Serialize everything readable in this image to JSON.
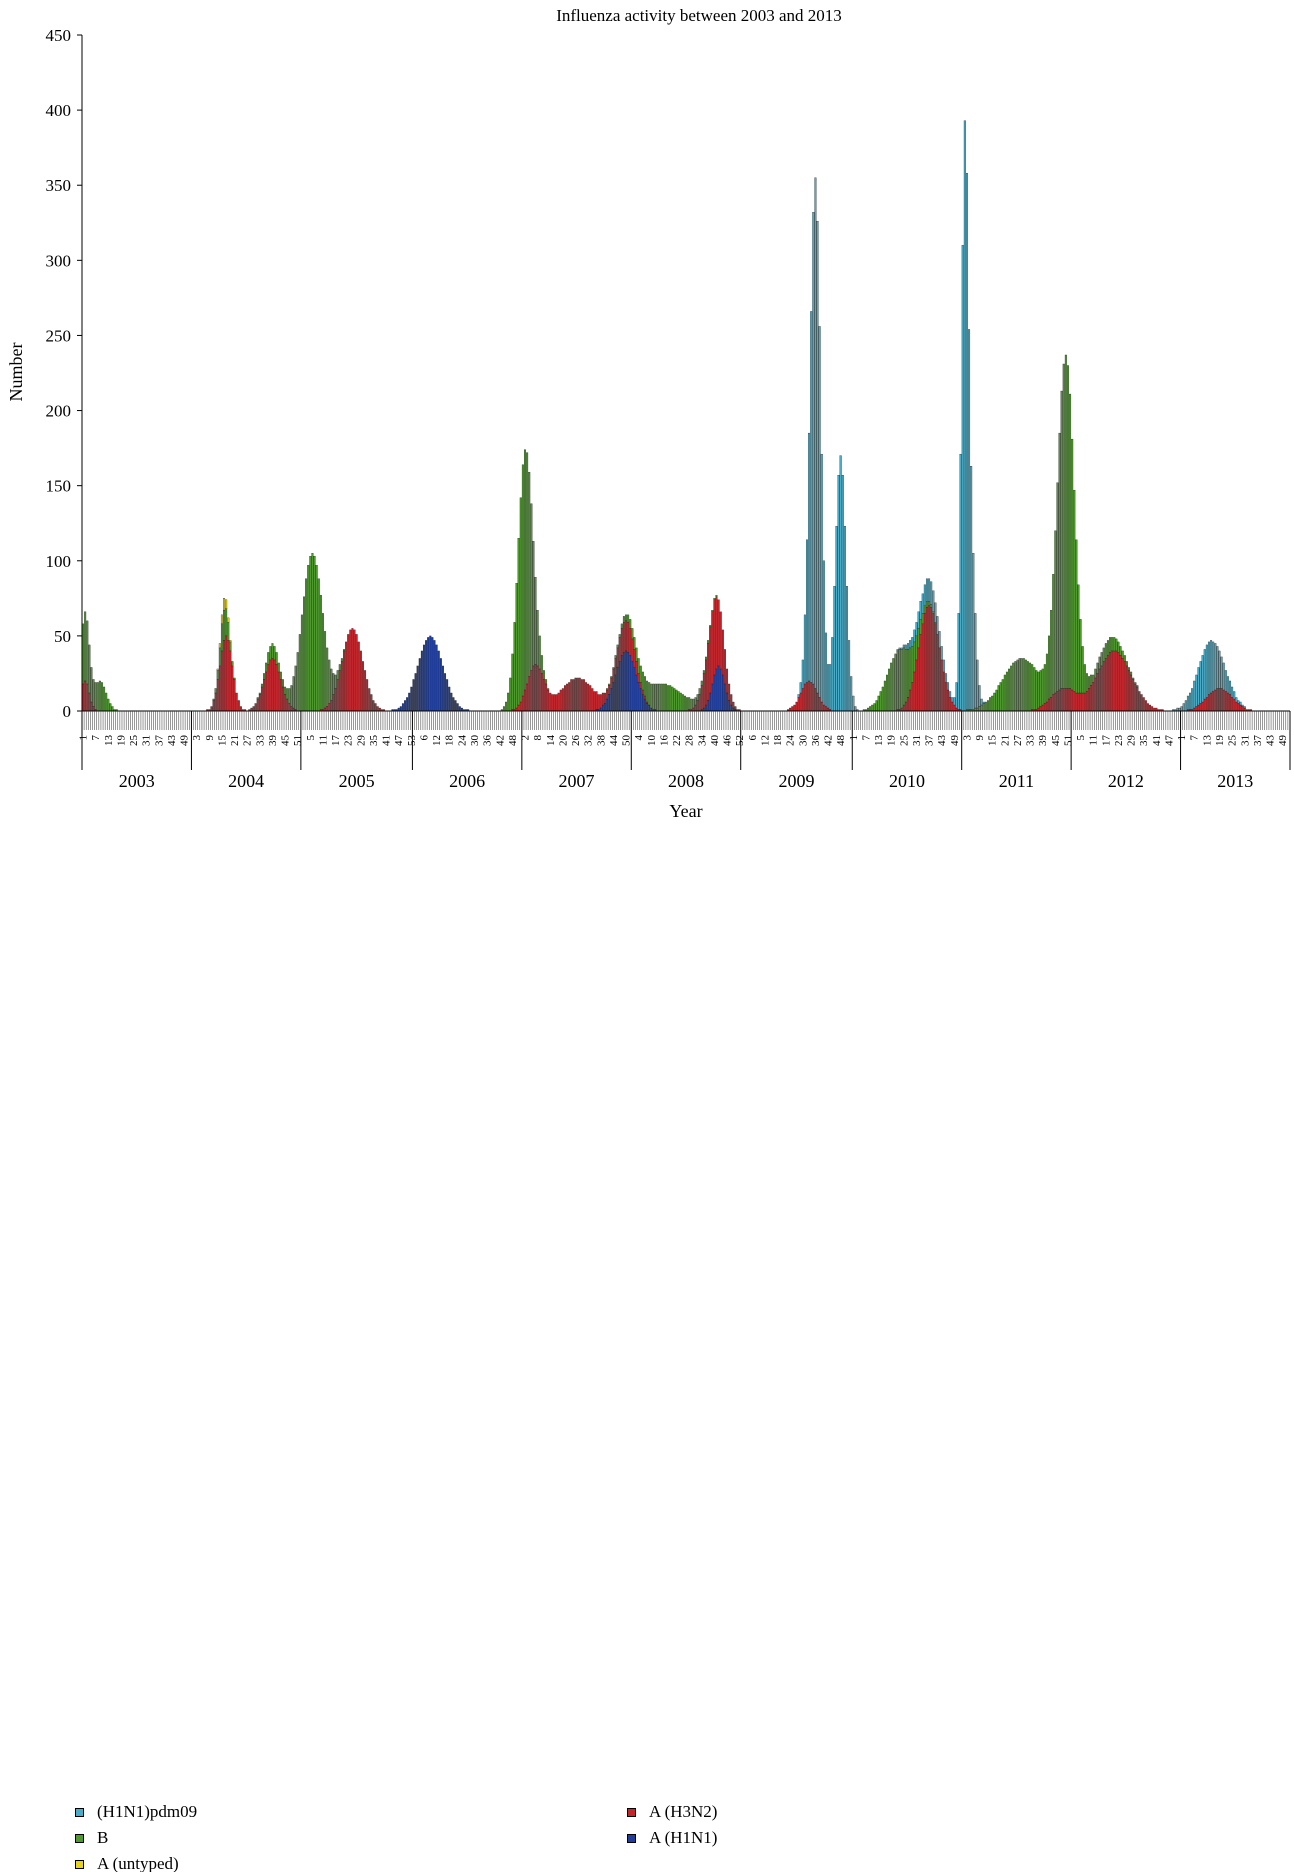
{
  "chart_data": {
    "type": "bar",
    "stacked": true,
    "title": "Influenza activity between 2003 and 2013",
    "xlabel": "Year",
    "ylabel": "Number",
    "ylim": [
      0,
      450
    ],
    "yticks": [
      0,
      50,
      100,
      150,
      200,
      250,
      300,
      350,
      400,
      450
    ],
    "grid": false,
    "legend_position": "bottom-left",
    "years": [
      "2003",
      "2004",
      "2005",
      "2006",
      "2007",
      "2008",
      "2009",
      "2010",
      "2011",
      "2012",
      "2013"
    ],
    "weeks_per_year": [
      52,
      52,
      53,
      52,
      52,
      52,
      53,
      52,
      52,
      52,
      52
    ],
    "week_tick_labels": [
      [
        "1",
        "7",
        "13",
        "19",
        "25",
        "31",
        "37",
        "43",
        "49"
      ],
      [
        "3",
        "9",
        "15",
        "21",
        "27",
        "33",
        "39",
        "45",
        "51"
      ],
      [
        "5",
        "11",
        "17",
        "23",
        "29",
        "35",
        "41",
        "47",
        "53"
      ],
      [
        "6",
        "12",
        "18",
        "24",
        "30",
        "36",
        "42",
        "48"
      ],
      [
        "2",
        "8",
        "14",
        "20",
        "26",
        "32",
        "38",
        "44",
        "50"
      ],
      [
        "4",
        "10",
        "16",
        "22",
        "28",
        "34",
        "40",
        "46",
        "52"
      ],
      [
        "6",
        "12",
        "18",
        "24",
        "30",
        "36",
        "42",
        "48"
      ],
      [
        "1",
        "7",
        "13",
        "19",
        "25",
        "31",
        "37",
        "43",
        "49"
      ],
      [
        "3",
        "9",
        "15",
        "21",
        "27",
        "33",
        "39",
        "45",
        "51"
      ],
      [
        "5",
        "11",
        "17",
        "23",
        "29",
        "35",
        "41",
        "47"
      ],
      [
        "1",
        "7",
        "13",
        "19",
        "25",
        "31",
        "37",
        "43",
        "49"
      ]
    ],
    "series_order": [
      "A (H1N1)",
      "A (H3N2)",
      "B",
      "(H1N1)pdm09",
      "A (untyped)"
    ],
    "series_colors": {
      "(H1N1)pdm09": "#4aacc6",
      "B": "#4e9a2e",
      "A (untyped)": "#e8d21e",
      "A (H3N2)": "#c0262c",
      "A (H1N1)": "#1f3d99"
    },
    "peaks": [
      {
        "series": "B",
        "week_index": 1,
        "value": 45,
        "spread": 2
      },
      {
        "series": "A (H3N2)",
        "week_index": 1,
        "value": 20,
        "spread": 2
      },
      {
        "series": "B",
        "week_index": 8,
        "value": 20,
        "spread": 3
      },
      {
        "series": "A (H3N2)",
        "week_index": 68,
        "value": 50,
        "spread": 3
      },
      {
        "series": "B",
        "week_index": 67,
        "value": 20,
        "spread": 2
      },
      {
        "series": "A (untyped)",
        "week_index": 67,
        "value": 8,
        "spread": 1.5
      },
      {
        "series": "A (H3N2)",
        "week_index": 90,
        "value": 35,
        "spread": 4
      },
      {
        "series": "B",
        "week_index": 90,
        "value": 10,
        "spread": 3
      },
      {
        "series": "B",
        "week_index": 109,
        "value": 105,
        "spread": 5
      },
      {
        "series": "A (H3N2)",
        "week_index": 128,
        "value": 55,
        "spread": 5
      },
      {
        "series": "A (H1N1)",
        "week_index": 165,
        "value": 50,
        "spread": 6
      },
      {
        "series": "B",
        "week_index": 210,
        "value": 160,
        "spread": 3.5
      },
      {
        "series": "A (H3N2)",
        "week_index": 215,
        "value": 30,
        "spread": 4
      },
      {
        "series": "A (H3N2)",
        "week_index": 235,
        "value": 22,
        "spread": 8
      },
      {
        "series": "A (H1N1)",
        "week_index": 258,
        "value": 40,
        "spread": 5
      },
      {
        "series": "A (H3N2)",
        "week_index": 258,
        "value": 20,
        "spread": 4
      },
      {
        "series": "B",
        "week_index": 275,
        "value": 18,
        "spread": 10
      },
      {
        "series": "A (H3N2)",
        "week_index": 300,
        "value": 50,
        "spread": 4
      },
      {
        "series": "A (H1N1)",
        "week_index": 302,
        "value": 30,
        "spread": 3
      },
      {
        "series": "(H1N1)pdm09",
        "week_index": 348,
        "value": 340,
        "spread": 2.5
      },
      {
        "series": "(H1N1)pdm09",
        "week_index": 360,
        "value": 170,
        "spread": 2.5
      },
      {
        "series": "A (H3N2)",
        "week_index": 345,
        "value": 20,
        "spread": 4
      },
      {
        "series": "B",
        "week_index": 388,
        "value": 40,
        "spread": 6
      },
      {
        "series": "A (H3N2)",
        "week_index": 402,
        "value": 70,
        "spread": 5
      },
      {
        "series": "(H1N1)pdm09",
        "week_index": 402,
        "value": 15,
        "spread": 6
      },
      {
        "series": "(H1N1)pdm09",
        "week_index": 419,
        "value": 360,
        "spread": 1.6
      },
      {
        "series": "(H1N1)pdm09",
        "week_index": 422,
        "value": 100,
        "spread": 2
      },
      {
        "series": "B",
        "week_index": 446,
        "value": 35,
        "spread": 9
      },
      {
        "series": "B",
        "week_index": 467,
        "value": 220,
        "spread": 4
      },
      {
        "series": "A (H3N2)",
        "week_index": 466,
        "value": 15,
        "spread": 6
      },
      {
        "series": "A (H3N2)",
        "week_index": 490,
        "value": 40,
        "spread": 8
      },
      {
        "series": "B",
        "week_index": 487,
        "value": 10,
        "spread": 6
      },
      {
        "series": "(H1N1)pdm09",
        "week_index": 535,
        "value": 35,
        "spread": 6
      },
      {
        "series": "A (H3N2)",
        "week_index": 540,
        "value": 15,
        "spread": 6
      }
    ]
  },
  "legend": {
    "items": [
      {
        "label": "(H1N1)pdm09",
        "series": "(H1N1)pdm09"
      },
      {
        "label": "B",
        "series": "B"
      },
      {
        "label": "A (untyped)",
        "series": "A (untyped)"
      },
      {
        "label": "A (H3N2)",
        "series": "A (H3N2)"
      },
      {
        "label": "A (H1N1)",
        "series": "A (H1N1)"
      }
    ]
  }
}
